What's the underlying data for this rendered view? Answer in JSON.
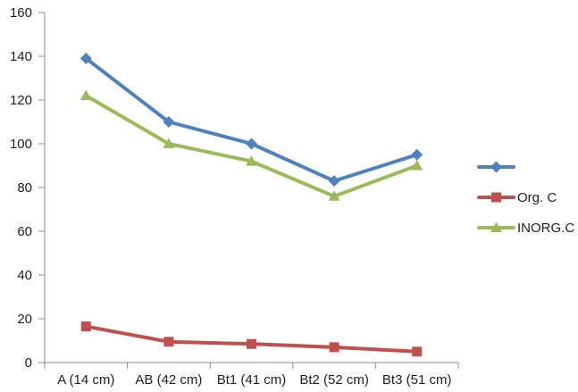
{
  "chart_data": {
    "type": "line",
    "categories": [
      "A (14 cm)",
      "AB (42 cm)",
      "Bt1 (41 cm)",
      "Bt2 (52 cm)",
      "Bt3 (51 cm)"
    ],
    "series": [
      {
        "name": "",
        "marker": "diamond",
        "color": "#4F81BD",
        "values": [
          139,
          110,
          100,
          83,
          95
        ]
      },
      {
        "name": "Org. C",
        "marker": "square",
        "color": "#C0504D",
        "values": [
          16.5,
          9.5,
          8.5,
          7,
          5
        ]
      },
      {
        "name": "INORG.C",
        "marker": "triangle",
        "color": "#9BBB59",
        "values": [
          122,
          100,
          92,
          76,
          90
        ]
      }
    ],
    "yticks": [
      0,
      20,
      40,
      60,
      80,
      100,
      120,
      140,
      160
    ],
    "ylim": [
      0,
      160
    ],
    "grid": false,
    "legend_position": "right",
    "axis_color": "#8C8C8C",
    "text_color": "#1F1F1F",
    "background_color": "#FFFFFF"
  }
}
